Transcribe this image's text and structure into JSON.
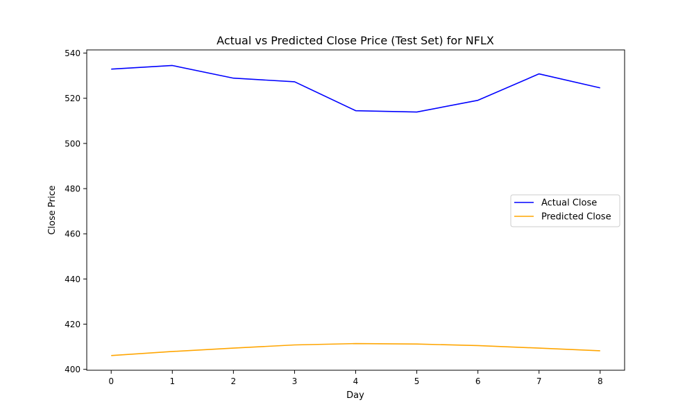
{
  "chart_data": {
    "type": "line",
    "title": "Actual vs Predicted Close Price (Test Set) for NFLX",
    "xlabel": "Day",
    "ylabel": "Close Price",
    "x": [
      0,
      1,
      2,
      3,
      4,
      5,
      6,
      7,
      8
    ],
    "xticks": [
      0,
      1,
      2,
      3,
      4,
      5,
      6,
      7,
      8
    ],
    "xlim": [
      -0.4,
      8.4
    ],
    "yticks": [
      400,
      420,
      440,
      460,
      480,
      500,
      520,
      540
    ],
    "ylim": [
      399.6,
      541.4
    ],
    "grid": false,
    "legend_position": "center-right",
    "series": [
      {
        "name": "Actual Close",
        "color": "#0000ff",
        "values": [
          532.9,
          534.5,
          528.9,
          527.3,
          514.5,
          513.9,
          519.1,
          530.8,
          524.6
        ]
      },
      {
        "name": "Predicted Close",
        "color": "#ffa500",
        "values": [
          406.1,
          407.9,
          409.4,
          410.8,
          411.4,
          411.2,
          410.5,
          409.4,
          408.2
        ]
      }
    ]
  }
}
